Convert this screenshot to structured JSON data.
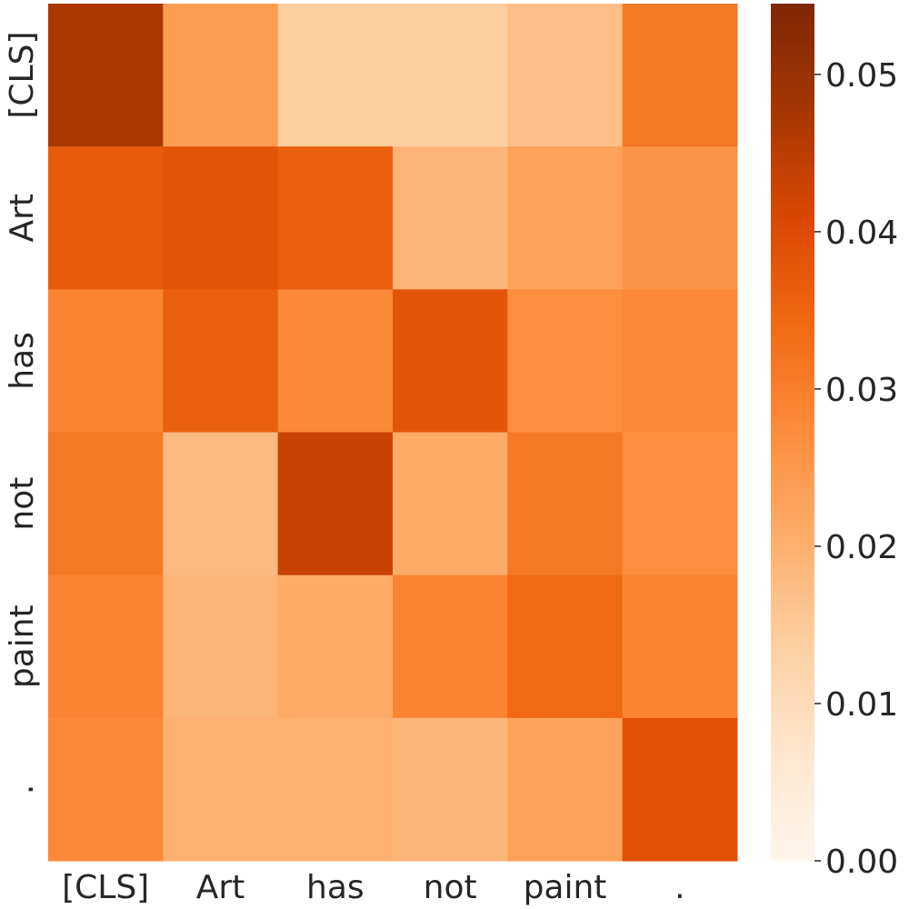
{
  "chart_data": {
    "type": "heatmap",
    "x_labels": [
      "[CLS]",
      "Art",
      "has",
      "not",
      "paint",
      "."
    ],
    "y_labels": [
      "[CLS]",
      "Art",
      "has",
      "not",
      "paint",
      "."
    ],
    "values": [
      [
        0.047,
        0.024,
        0.014,
        0.014,
        0.017,
        0.031
      ],
      [
        0.037,
        0.038,
        0.036,
        0.019,
        0.023,
        0.026
      ],
      [
        0.029,
        0.036,
        0.028,
        0.038,
        0.027,
        0.028
      ],
      [
        0.031,
        0.018,
        0.043,
        0.021,
        0.031,
        0.027
      ],
      [
        0.029,
        0.019,
        0.021,
        0.029,
        0.034,
        0.029
      ],
      [
        0.028,
        0.02,
        0.02,
        0.019,
        0.023,
        0.039
      ]
    ],
    "colorbar": {
      "min": 0.0,
      "max": 0.0545,
      "ticks": [
        0.0,
        0.01,
        0.02,
        0.03,
        0.04,
        0.05
      ],
      "tick_labels": [
        "0.00",
        "0.01",
        "0.02",
        "0.03",
        "0.04",
        "0.05"
      ],
      "colormap": "Oranges",
      "position": "right"
    },
    "colors": {
      "low": "#fff5eb",
      "high": "#7f2704"
    }
  }
}
